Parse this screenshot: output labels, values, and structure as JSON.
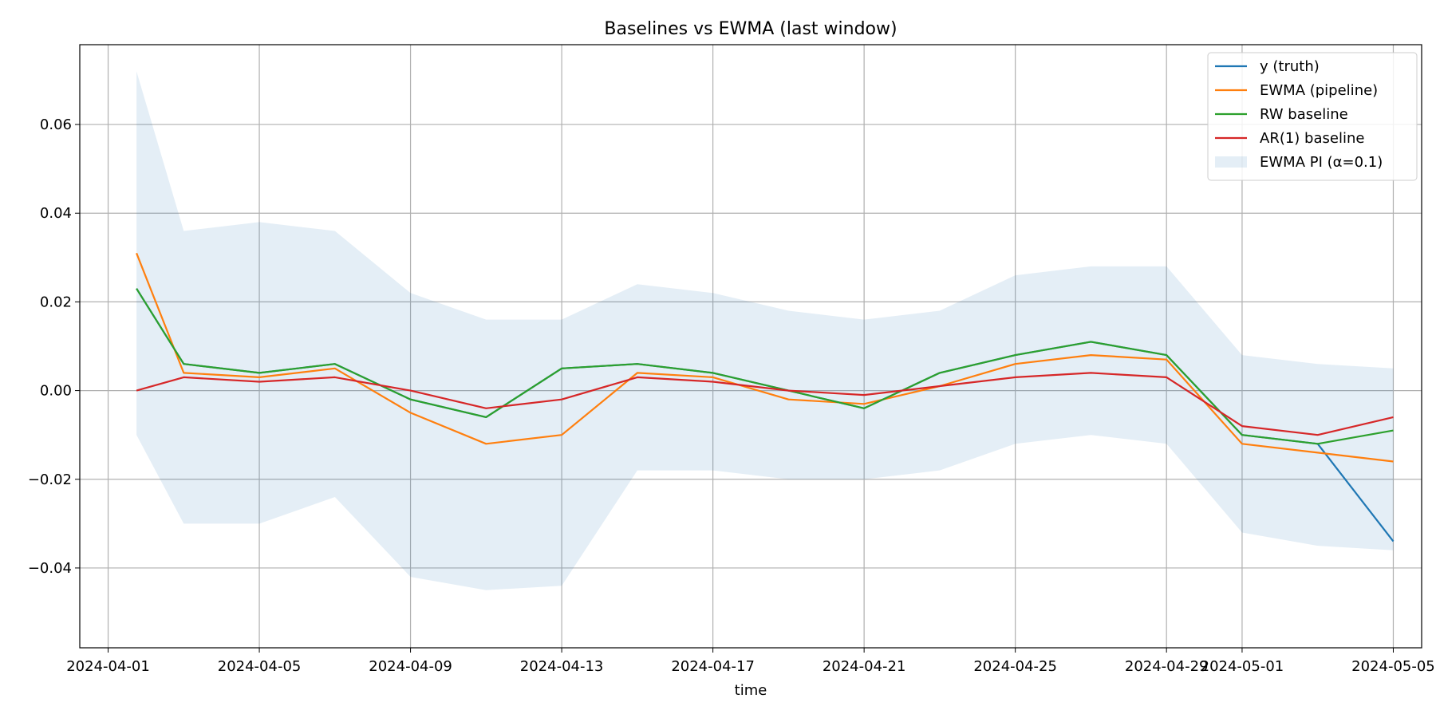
{
  "chart_data": {
    "type": "line",
    "title": "Baselines vs EWMA (last window)",
    "xlabel": "time",
    "ylabel": "",
    "x_axis": "date",
    "x_start": "2024-04-01",
    "xlim": [
      "2024-03-31T06:00",
      "2024-05-05T18:00"
    ],
    "ylim": [
      -0.058,
      0.078
    ],
    "grid": true,
    "legend_position": "top-right",
    "x_ticks": [
      {
        "date": "2024-04-01",
        "label": "2024-04-01"
      },
      {
        "date": "2024-04-05",
        "label": "2024-04-05"
      },
      {
        "date": "2024-04-09",
        "label": "2024-04-09"
      },
      {
        "date": "2024-04-13",
        "label": "2024-04-13"
      },
      {
        "date": "2024-04-17",
        "label": "2024-04-17"
      },
      {
        "date": "2024-04-21",
        "label": "2024-04-21"
      },
      {
        "date": "2024-04-25",
        "label": "2024-04-25"
      },
      {
        "date": "2024-04-29",
        "label": "2024-04-29"
      },
      {
        "date": "2024-05-01",
        "label": "2024-05-01"
      },
      {
        "date": "2024-05-05",
        "label": "2024-05-05"
      }
    ],
    "y_ticks": [
      {
        "value": 0.06,
        "label": "0.06"
      },
      {
        "value": 0.04,
        "label": "0.04"
      },
      {
        "value": 0.02,
        "label": "0.02"
      },
      {
        "value": 0.0,
        "label": "0.00"
      },
      {
        "value": -0.02,
        "label": "−0.02"
      },
      {
        "value": -0.04,
        "label": "−0.04"
      }
    ],
    "x_dates": [
      "2024-04-01T18:00",
      "2024-04-03",
      "2024-04-05",
      "2024-04-07",
      "2024-04-09",
      "2024-04-11",
      "2024-04-13",
      "2024-04-15",
      "2024-04-17",
      "2024-04-19",
      "2024-04-21",
      "2024-04-23",
      "2024-04-25",
      "2024-04-27",
      "2024-04-29",
      "2024-05-01",
      "2024-05-03",
      "2024-05-05"
    ],
    "series": [
      {
        "name": "y (truth)",
        "color": "#1f77b4",
        "values": [
          0.023,
          0.006,
          0.004,
          0.006,
          -0.002,
          -0.006,
          0.005,
          0.006,
          0.004,
          0.0,
          -0.004,
          0.004,
          0.008,
          0.011,
          0.008,
          -0.01,
          -0.012,
          -0.034
        ]
      },
      {
        "name": "EWMA (pipeline)",
        "color": "#ff7f0e",
        "values": [
          0.031,
          0.004,
          0.003,
          0.005,
          -0.005,
          -0.012,
          -0.01,
          0.004,
          0.003,
          -0.002,
          -0.003,
          0.001,
          0.006,
          0.008,
          0.007,
          -0.012,
          -0.014,
          -0.016
        ]
      },
      {
        "name": "RW baseline",
        "color": "#2ca02c",
        "values": [
          0.023,
          0.006,
          0.004,
          0.006,
          -0.002,
          -0.006,
          0.005,
          0.006,
          0.004,
          0.0,
          -0.004,
          0.004,
          0.008,
          0.011,
          0.008,
          -0.01,
          -0.012,
          -0.009
        ]
      },
      {
        "name": "AR(1) baseline",
        "color": "#d62728",
        "values": [
          0.0,
          0.003,
          0.002,
          0.003,
          0.0,
          -0.004,
          -0.002,
          0.003,
          0.002,
          0.0,
          -0.001,
          0.001,
          0.003,
          0.004,
          0.003,
          -0.008,
          -0.01,
          -0.006
        ]
      }
    ],
    "band": {
      "name": "EWMA PI (α=0.1)",
      "color": "#1f77b4",
      "opacity": 0.12,
      "lower": [
        -0.01,
        -0.03,
        -0.03,
        -0.024,
        -0.042,
        -0.045,
        -0.044,
        -0.018,
        -0.018,
        -0.02,
        -0.02,
        -0.018,
        -0.012,
        -0.01,
        -0.012,
        -0.032,
        -0.035,
        -0.036
      ],
      "upper": [
        0.072,
        0.036,
        0.038,
        0.036,
        0.022,
        0.016,
        0.016,
        0.024,
        0.022,
        0.018,
        0.016,
        0.018,
        0.026,
        0.028,
        0.028,
        0.008,
        0.006,
        0.005
      ]
    }
  }
}
